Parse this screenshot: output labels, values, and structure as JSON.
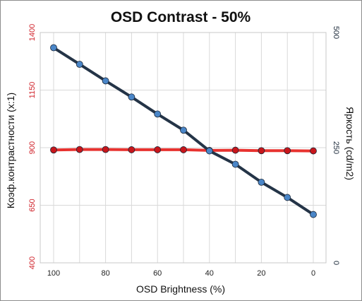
{
  "chart_data": {
    "type": "line",
    "title": "OSD Contrast - 50%",
    "xlabel": "OSD Brightness (%)",
    "ylabel": "Коэф.контрастности (x:1)",
    "y2label": "Яркость (cd/m2)",
    "x": [
      100,
      90,
      80,
      70,
      60,
      50,
      40,
      30,
      20,
      10,
      0
    ],
    "x_ticks": [
      "100",
      "80",
      "60",
      "40",
      "20",
      "0"
    ],
    "xlim": [
      100,
      0
    ],
    "ylim": [
      400,
      1400
    ],
    "y_ticks": [
      "400",
      "650",
      "900",
      "1150",
      "1400"
    ],
    "y2lim": [
      0,
      500
    ],
    "y2_ticks": [
      "0",
      "250",
      "500"
    ],
    "grid": true,
    "legend": "none",
    "series": [
      {
        "axis": "left",
        "color": "#e8322f",
        "marker_color": "#c8161b",
        "values": [
          890,
          892,
          892,
          891,
          891,
          891,
          888,
          889,
          887,
          887,
          886
        ]
      },
      {
        "axis": "right",
        "color": "#243447",
        "marker_color": "#4a86c8",
        "values": [
          467,
          431,
          395,
          360,
          323,
          288,
          243,
          214,
          175,
          142,
          105
        ]
      }
    ]
  }
}
